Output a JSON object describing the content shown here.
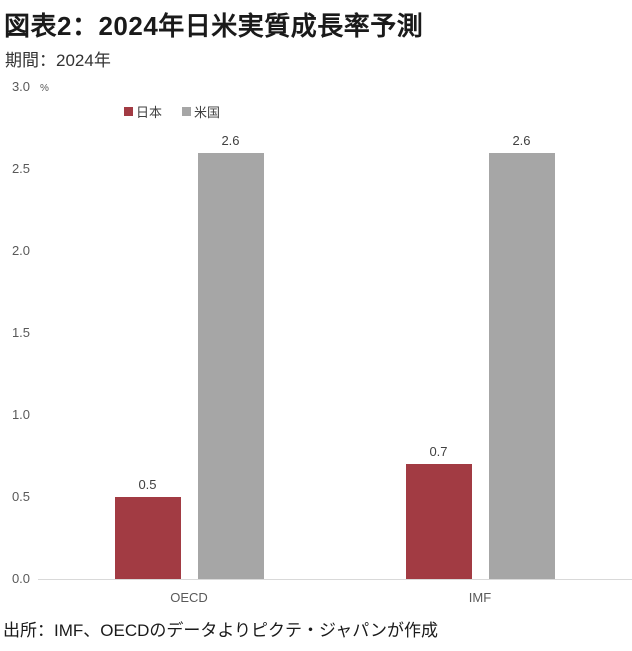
{
  "header": {
    "title": "図表2：2024年日米実質成長率予測",
    "subtitle": "期間：2024年"
  },
  "footer": {
    "source": "出所：IMF、OECDのデータよりピクテ・ジャパンが作成"
  },
  "chart_data": {
    "type": "bar",
    "title": "図表2：2024年日米実質成長率予測",
    "subtitle": "期間：2024年",
    "unit": "%",
    "categories": [
      "OECD",
      "IMF"
    ],
    "series": [
      {
        "name": "日本",
        "color": "#a23b43",
        "values": [
          0.5,
          0.7
        ]
      },
      {
        "name": "米国",
        "color": "#a6a6a6",
        "values": [
          2.6,
          2.6
        ]
      }
    ],
    "yticks": [
      "3.0",
      "2.5",
      "2.0",
      "1.5",
      "1.0",
      "0.5",
      "0.0"
    ],
    "ylim": [
      0,
      3.0
    ],
    "grid": false,
    "legend_position": "top",
    "value_labels": true,
    "source": "出所：IMF、OECDのデータよりピクテ・ジャパンが作成"
  }
}
